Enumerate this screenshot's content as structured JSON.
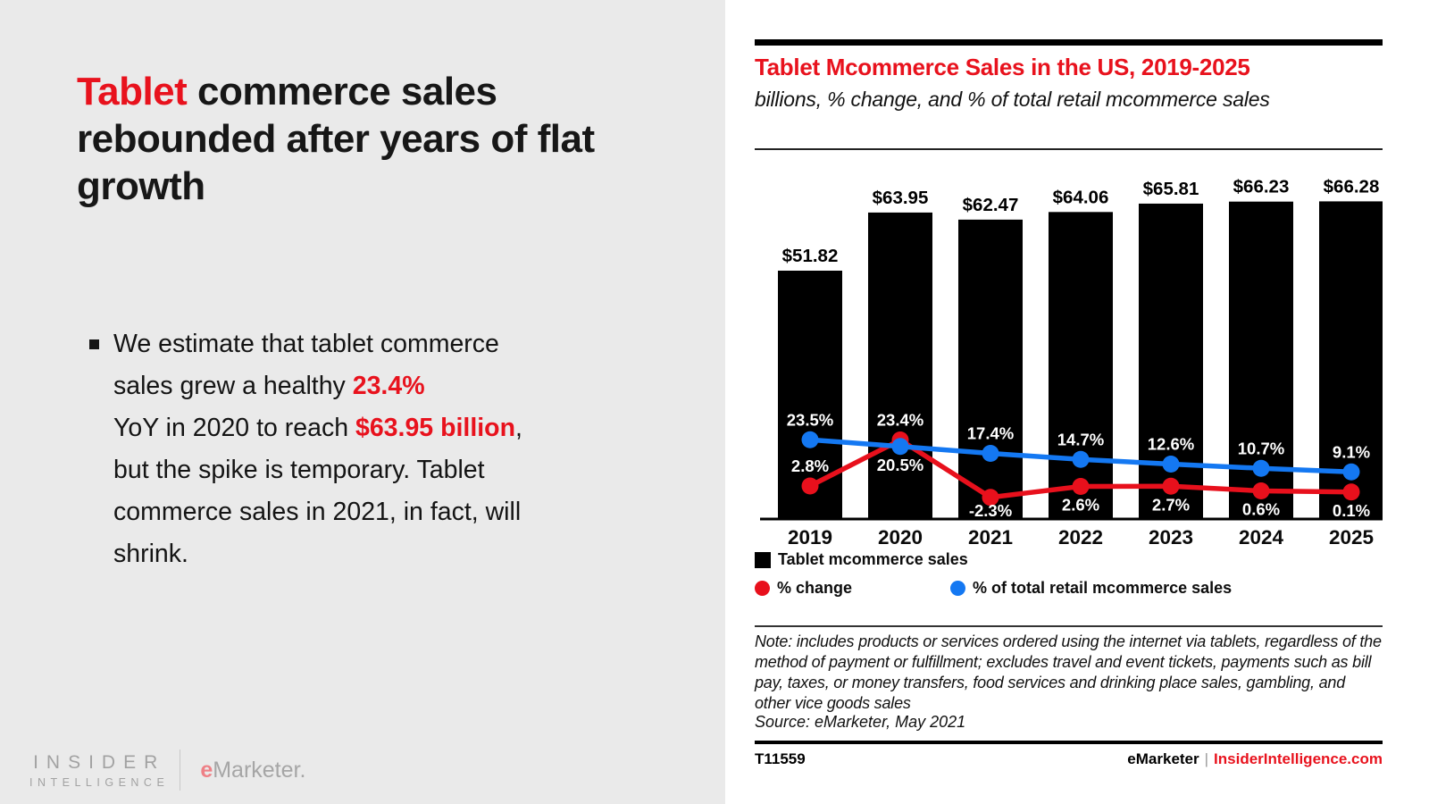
{
  "colors": {
    "accent_red": "#e8121d",
    "line_red": "#e8101c",
    "line_blue": "#1478f2",
    "bar_black": "#000000",
    "panel_gray": "#eaeaea"
  },
  "left_panel": {
    "title_accent_word": "Tablet",
    "title_rest": " commerce sales rebounded after years of flat growth",
    "bullet_lines": [
      [
        {
          "t": "We estimate that tablet commerce"
        }
      ],
      [
        {
          "t": "sales grew a healthy "
        },
        {
          "t": "23.4%",
          "s": "accent"
        }
      ],
      [
        {
          "t": "YoY in 2020 to reach "
        },
        {
          "t": "$63.95 billion",
          "s": "accent"
        },
        {
          "t": ","
        }
      ],
      [
        {
          "t": "but the spike is temporary. Tablet"
        }
      ],
      [
        {
          "t": "commerce sales in 2021, in fact, will"
        }
      ],
      [
        {
          "t": "shrink."
        }
      ]
    ],
    "logos": {
      "insider_line1": "INSIDER",
      "insider_line2": "INTELLIGENCE",
      "emarketer_e": "e",
      "emarketer_rest": "Marketer."
    }
  },
  "chart_header": {
    "title": "Tablet Mcommerce Sales in the US, 2019-2025",
    "subtitle": "billions, % change, and % of total retail mcommerce sales"
  },
  "chart_data": {
    "type": "bar+line",
    "categories": [
      "2019",
      "2020",
      "2021",
      "2022",
      "2023",
      "2024",
      "2025"
    ],
    "series": [
      {
        "name": "Tablet mcommerce sales",
        "type": "bar",
        "unit": "billions USD",
        "values": [
          51.82,
          63.95,
          62.47,
          64.06,
          65.81,
          66.23,
          66.28
        ],
        "labels": [
          "$51.82",
          "$63.95",
          "$62.47",
          "$64.06",
          "$65.81",
          "$66.23",
          "$66.28"
        ]
      },
      {
        "name": "% change",
        "type": "line",
        "values": [
          2.8,
          23.4,
          -2.3,
          2.6,
          2.7,
          0.6,
          0.1
        ],
        "labels": [
          "2.8%",
          "23.4%",
          "-2.3%",
          "2.6%",
          "2.7%",
          "0.6%",
          "0.1%"
        ],
        "label_placement": [
          "above",
          "above",
          "below",
          "below",
          "below",
          "below",
          "below"
        ]
      },
      {
        "name": "% of total retail mcommerce sales",
        "type": "line",
        "values": [
          23.5,
          20.5,
          17.4,
          14.7,
          12.6,
          10.7,
          9.1
        ],
        "labels": [
          "23.5%",
          "20.5%",
          "17.4%",
          "14.7%",
          "12.6%",
          "10.7%",
          "9.1%"
        ],
        "label_placement": [
          "above",
          "below",
          "above",
          "above",
          "above",
          "above",
          "above"
        ]
      }
    ],
    "title": "Tablet Mcommerce Sales in the US, 2019-2025",
    "xlabel": "",
    "ylabel": "",
    "ylim_bars": [
      0,
      75
    ],
    "grid": false,
    "legend_position": "bottom"
  },
  "legend": {
    "bar_label": "Tablet mcommerce sales",
    "red_label": "% change",
    "blue_label": "% of total retail mcommerce sales"
  },
  "note": "Note: includes products or services ordered using the internet via tablets, regardless of the method of payment or fulfillment; excludes travel and event tickets, payments such as bill pay, taxes, or money transfers, food services and drinking place sales, gambling, and other vice goods sales",
  "source": "Source: eMarketer, May 2021",
  "footer": {
    "chart_id": "T11559",
    "brand_left": "eMarketer",
    "brand_sep": "|",
    "brand_right": "InsiderIntelligence.com"
  }
}
